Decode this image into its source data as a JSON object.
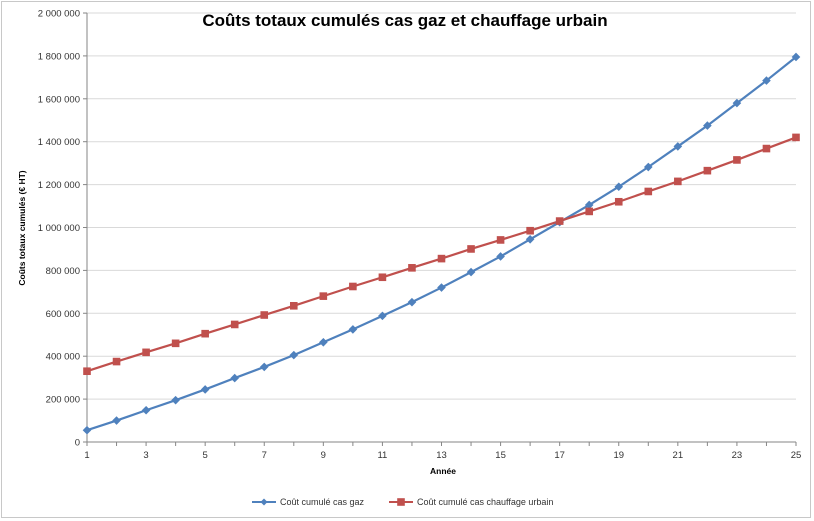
{
  "chart_data": {
    "type": "line",
    "title": "Coûts totaux cumulés cas gaz et chauffage urbain",
    "xlabel": "Année",
    "ylabel": "Coûts totaux cumulés (€ HT)",
    "x": [
      1,
      2,
      3,
      4,
      5,
      6,
      7,
      8,
      9,
      10,
      11,
      12,
      13,
      14,
      15,
      16,
      17,
      18,
      19,
      20,
      21,
      22,
      23,
      24,
      25
    ],
    "x_ticks": [
      "1",
      "3",
      "5",
      "7",
      "9",
      "11",
      "13",
      "15",
      "17",
      "19",
      "21",
      "23",
      "25"
    ],
    "y_ticks": [
      "0",
      "200 000",
      "400 000",
      "600 000",
      "800 000",
      "1 000 000",
      "1 200 000",
      "1 400 000",
      "1 600 000",
      "1 800 000",
      "2 000 000"
    ],
    "ylim": [
      0,
      2000000
    ],
    "xlim": [
      1,
      25
    ],
    "grid": "horizontal",
    "legend_position": "bottom",
    "series": [
      {
        "name": "Coût cumulé cas gaz",
        "color": "#4f81bd",
        "marker": "diamond",
        "values": [
          55000,
          100000,
          148000,
          195000,
          245000,
          298000,
          350000,
          405000,
          465000,
          525000,
          588000,
          652000,
          720000,
          792000,
          865000,
          945000,
          1025000,
          1105000,
          1190000,
          1282000,
          1378000,
          1475000,
          1580000,
          1685000,
          1795000
        ]
      },
      {
        "name": "Coût cumulé cas chauffage urbain",
        "color": "#c0504d",
        "marker": "square",
        "values": [
          330000,
          375000,
          418000,
          460000,
          505000,
          548000,
          592000,
          635000,
          680000,
          725000,
          768000,
          812000,
          855000,
          900000,
          942000,
          985000,
          1030000,
          1075000,
          1120000,
          1168000,
          1215000,
          1265000,
          1315000,
          1368000,
          1420000
        ]
      }
    ]
  }
}
